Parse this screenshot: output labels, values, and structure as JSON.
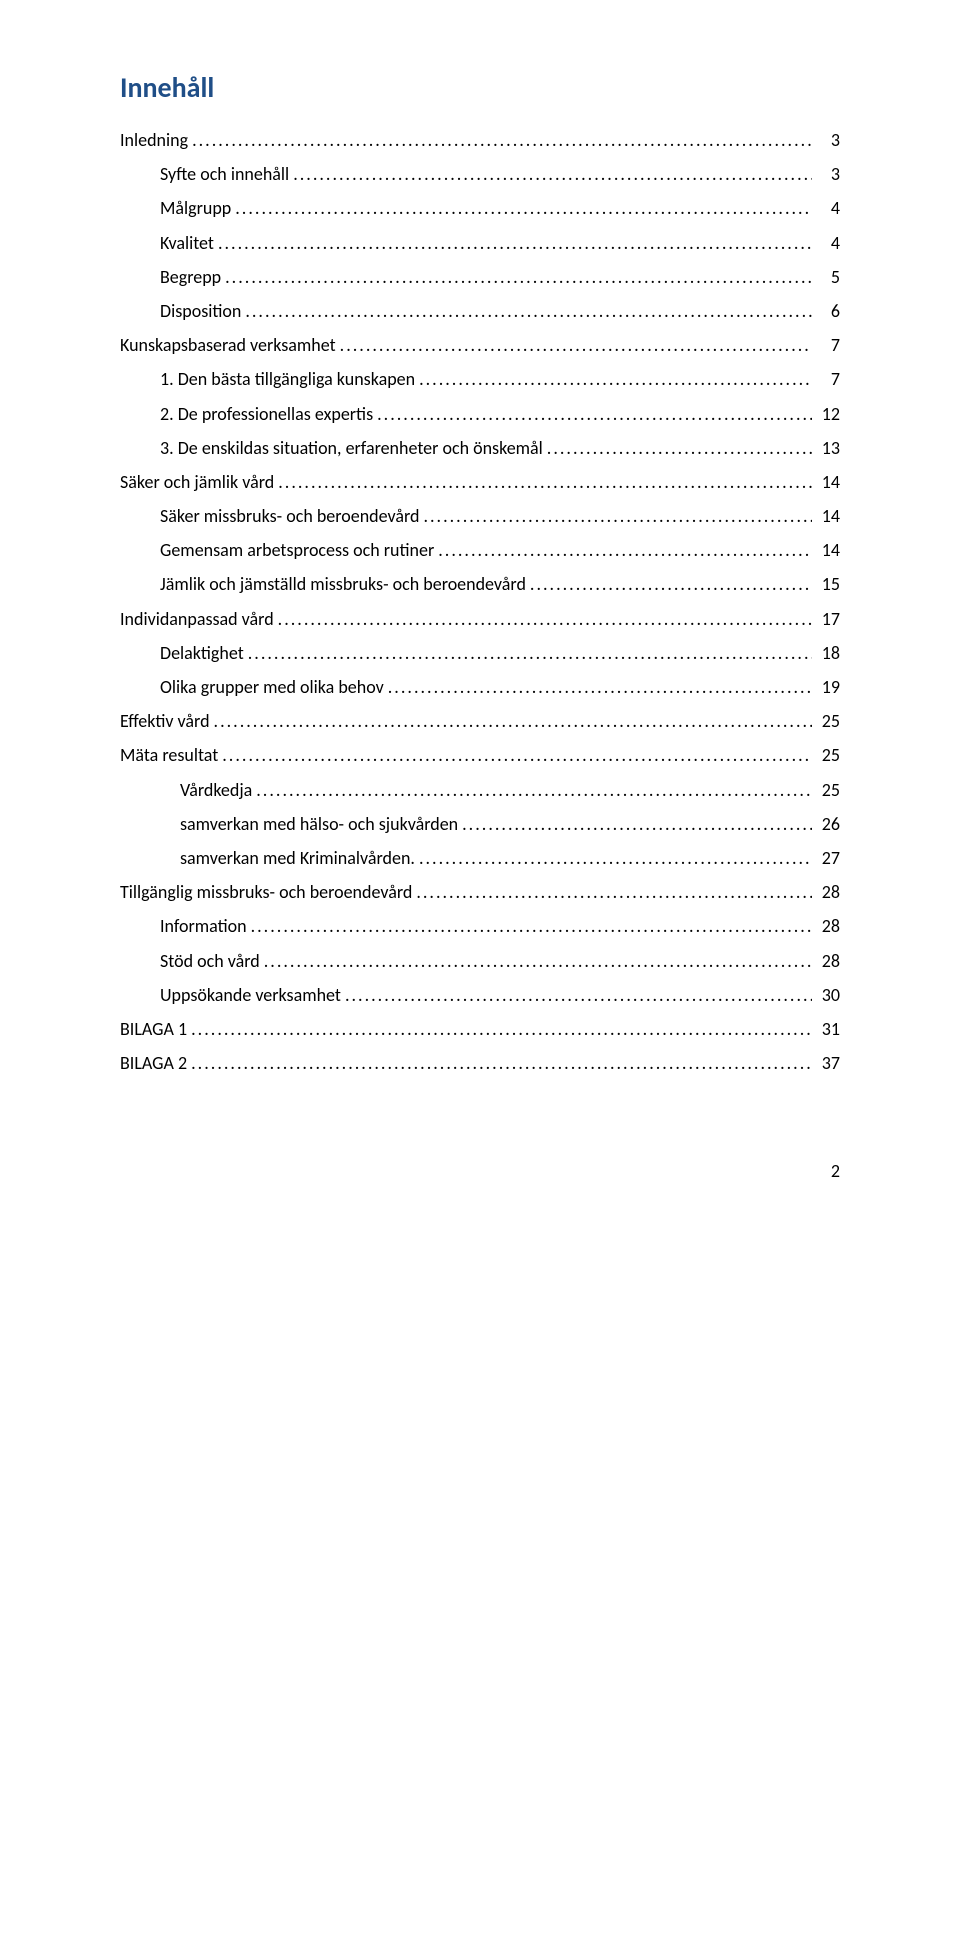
{
  "title": {
    "text": "Innehåll",
    "color": "#1f4e87",
    "fontsize": 28,
    "weight": "bold"
  },
  "toc": {
    "text_color": "#000000",
    "fontsize": 18,
    "leader_char": ".",
    "entries": [
      {
        "label": "Inledning",
        "page": "3",
        "level": 0
      },
      {
        "label": "Syfte och innehåll",
        "page": "3",
        "level": 1
      },
      {
        "label": "Målgrupp",
        "page": "4",
        "level": 1
      },
      {
        "label": "Kvalitet",
        "page": "4",
        "level": 1
      },
      {
        "label": "Begrepp",
        "page": "5",
        "level": 1
      },
      {
        "label": "Disposition",
        "page": "6",
        "level": 1
      },
      {
        "label": "Kunskapsbaserad verksamhet",
        "page": "7",
        "level": 0
      },
      {
        "label": "1.   Den bästa tillgängliga kunskapen",
        "page": "7",
        "level": 1
      },
      {
        "label": "2.   De professionellas expertis",
        "page": "12",
        "level": 1
      },
      {
        "label": "3.   De enskildas situation, erfarenheter och önskemål",
        "page": "13",
        "level": 1
      },
      {
        "label": "Säker och jämlik vård",
        "page": "14",
        "level": 0
      },
      {
        "label": "Säker missbruks- och beroendevård",
        "page": "14",
        "level": 1
      },
      {
        "label": "Gemensam arbetsprocess och rutiner",
        "page": "14",
        "level": 1
      },
      {
        "label": "Jämlik och jämställd missbruks- och beroendevård",
        "page": "15",
        "level": 1
      },
      {
        "label": "Individanpassad vård",
        "page": "17",
        "level": 0
      },
      {
        "label": "Delaktighet",
        "page": "18",
        "level": 1
      },
      {
        "label": "Olika grupper med olika behov",
        "page": "19",
        "level": 1
      },
      {
        "label": "Effektiv vård",
        "page": "25",
        "level": 0
      },
      {
        "label": "Mäta resultat",
        "page": "25",
        "level": 0
      },
      {
        "label": "Vårdkedja",
        "page": "25",
        "level": 2
      },
      {
        "label": "samverkan med hälso- och sjukvården",
        "page": "26",
        "level": 2
      },
      {
        "label": "samverkan med Kriminalvården.",
        "page": "27",
        "level": 2
      },
      {
        "label": "Tillgänglig missbruks- och beroendevård",
        "page": "28",
        "level": 0
      },
      {
        "label": "Information",
        "page": "28",
        "level": 1
      },
      {
        "label": "Stöd och vård",
        "page": "28",
        "level": 1
      },
      {
        "label": "Uppsökande verksamhet",
        "page": "30",
        "level": 1
      },
      {
        "label": "BILAGA 1",
        "page": "31",
        "level": 0
      },
      {
        "label": "BILAGA 2",
        "page": "37",
        "level": 0
      }
    ]
  },
  "page_number": "2"
}
